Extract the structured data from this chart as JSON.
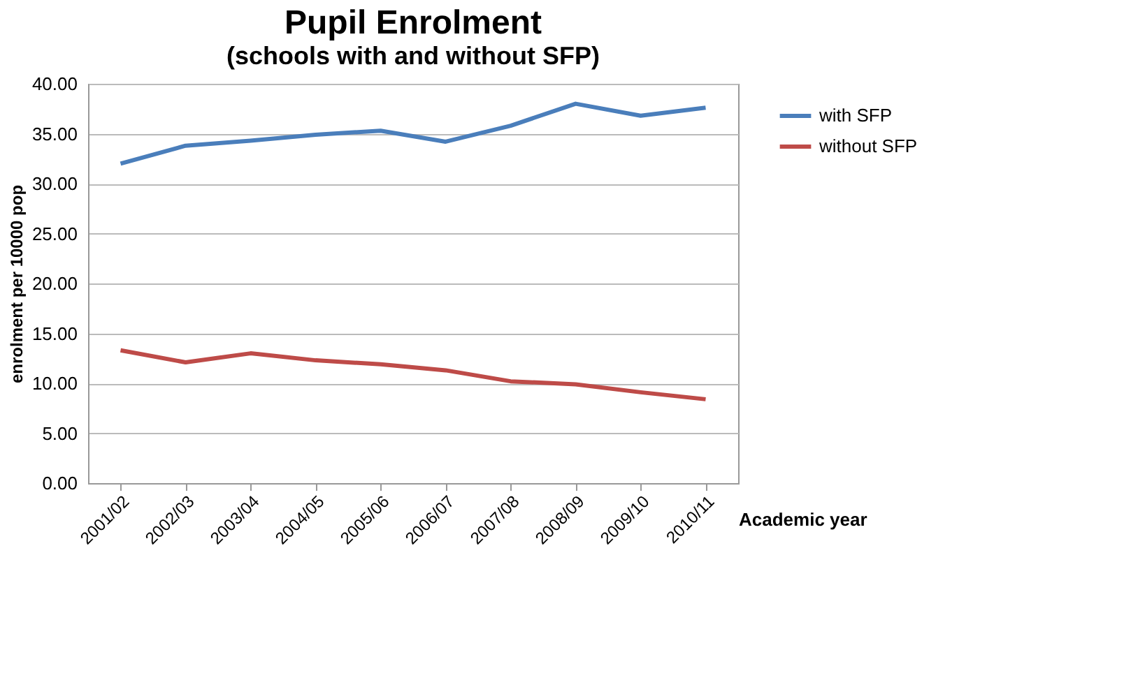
{
  "chart_data": {
    "type": "line",
    "title": "Pupil Enrolment",
    "subtitle": "(schools with and without SFP)",
    "xlabel": "Academic year",
    "ylabel": "enrolment per 10000 pop",
    "categories": [
      "2001/02",
      "2002/03",
      "2003/04",
      "2004/05",
      "2005/06",
      "2006/07",
      "2007/08",
      "2008/09",
      "2009/10",
      "2010/11"
    ],
    "series": [
      {
        "name": "with SFP",
        "color": "#4a7ebb",
        "values": [
          32.0,
          33.8,
          34.3,
          34.9,
          35.3,
          34.2,
          35.8,
          38.0,
          36.8,
          37.6
        ]
      },
      {
        "name": "without  SFP",
        "color": "#be4b48",
        "values": [
          13.3,
          12.1,
          13.0,
          12.3,
          11.9,
          11.3,
          10.2,
          9.9,
          9.1,
          8.4
        ]
      }
    ],
    "ylim": [
      0,
      40
    ],
    "yticks": [
      {
        "value": 0,
        "label": "0.00"
      },
      {
        "value": 5,
        "label": "5.00"
      },
      {
        "value": 10,
        "label": "10.00"
      },
      {
        "value": 15,
        "label": "15.00"
      },
      {
        "value": 20,
        "label": "20.00"
      },
      {
        "value": 25,
        "label": "25.00"
      },
      {
        "value": 30,
        "label": "30.00"
      },
      {
        "value": 35,
        "label": "35.00"
      },
      {
        "value": 40,
        "label": "40.00"
      }
    ],
    "grid": "y",
    "legend": "right",
    "marker": "none",
    "line_style": "solid"
  }
}
